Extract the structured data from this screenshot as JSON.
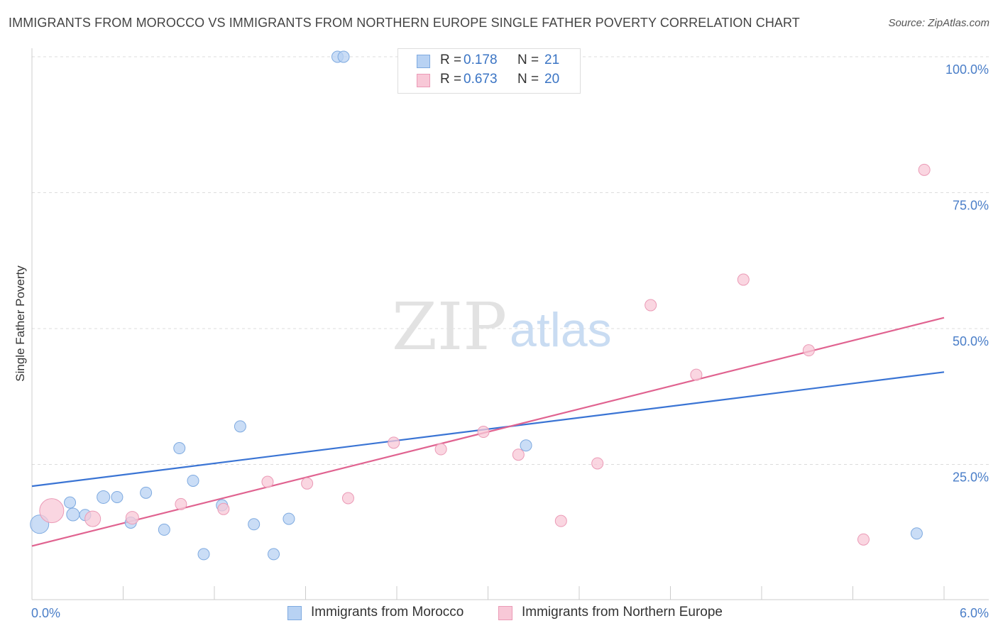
{
  "title": "IMMIGRANTS FROM MOROCCO VS IMMIGRANTS FROM NORTHERN EUROPE SINGLE FATHER POVERTY CORRELATION CHART",
  "source": "Source: ZipAtlas.com",
  "watermark": {
    "zip": "ZIP",
    "atlas": "atlas"
  },
  "chart_data": {
    "type": "scatter",
    "title": "IMMIGRANTS FROM MOROCCO VS IMMIGRANTS FROM NORTHERN EUROPE SINGLE FATHER POVERTY CORRELATION CHART",
    "xlabel": "",
    "ylabel": "Single Father Poverty",
    "xlim": [
      0,
      6
    ],
    "ylim": [
      0,
      100
    ],
    "x_tick_labels": {
      "min": "0.0%",
      "max": "6.0%"
    },
    "y_tick_labels": [
      {
        "value": 25,
        "label": "25.0%"
      },
      {
        "value": 50,
        "label": "50.0%"
      },
      {
        "value": 75,
        "label": "75.0%"
      },
      {
        "value": 100,
        "label": "100.0%"
      }
    ],
    "grid": true,
    "series": [
      {
        "name": "Immigrants from Morocco",
        "color": "#3a74d4",
        "fill": "#b8d2f3",
        "stroke": "#7eaae0",
        "R": "0.178",
        "N": "21",
        "points": [
          {
            "x": 0.05,
            "y": 14.0,
            "size": 13
          },
          {
            "x": 0.27,
            "y": 15.8,
            "size": 9
          },
          {
            "x": 0.25,
            "y": 18.0,
            "size": 8
          },
          {
            "x": 0.35,
            "y": 15.7,
            "size": 8
          },
          {
            "x": 0.47,
            "y": 19.0,
            "size": 9
          },
          {
            "x": 0.56,
            "y": 19.0,
            "size": 8
          },
          {
            "x": 0.65,
            "y": 14.3,
            "size": 8
          },
          {
            "x": 0.75,
            "y": 19.8,
            "size": 8
          },
          {
            "x": 0.87,
            "y": 13.0,
            "size": 8
          },
          {
            "x": 0.97,
            "y": 28.0,
            "size": 8
          },
          {
            "x": 1.06,
            "y": 22.0,
            "size": 8
          },
          {
            "x": 1.13,
            "y": 8.5,
            "size": 8
          },
          {
            "x": 1.25,
            "y": 17.5,
            "size": 8
          },
          {
            "x": 1.37,
            "y": 32.0,
            "size": 8
          },
          {
            "x": 1.46,
            "y": 14.0,
            "size": 8
          },
          {
            "x": 1.59,
            "y": 8.5,
            "size": 8
          },
          {
            "x": 1.69,
            "y": 15.0,
            "size": 8
          },
          {
            "x": 2.01,
            "y": 100.0,
            "size": 8
          },
          {
            "x": 2.05,
            "y": 100.0,
            "size": 8
          },
          {
            "x": 3.25,
            "y": 28.5,
            "size": 8
          },
          {
            "x": 5.82,
            "y": 12.3,
            "size": 8
          }
        ],
        "trend": {
          "x0": 0,
          "y0": 21.0,
          "x1": 6,
          "y1": 42.0
        }
      },
      {
        "name": "Immigrants from Northern Europe",
        "color": "#e06390",
        "fill": "#f8c8d7",
        "stroke": "#eb9ab6",
        "R": "0.673",
        "N": "20",
        "points": [
          {
            "x": 0.13,
            "y": 16.5,
            "size": 17
          },
          {
            "x": 0.4,
            "y": 15.0,
            "size": 11
          },
          {
            "x": 0.66,
            "y": 15.2,
            "size": 9
          },
          {
            "x": 0.98,
            "y": 17.7,
            "size": 8
          },
          {
            "x": 1.26,
            "y": 16.8,
            "size": 8
          },
          {
            "x": 1.55,
            "y": 21.8,
            "size": 8
          },
          {
            "x": 1.81,
            "y": 21.5,
            "size": 8
          },
          {
            "x": 2.08,
            "y": 18.8,
            "size": 8
          },
          {
            "x": 2.38,
            "y": 29.0,
            "size": 8
          },
          {
            "x": 2.69,
            "y": 27.8,
            "size": 8
          },
          {
            "x": 2.97,
            "y": 31.0,
            "size": 8
          },
          {
            "x": 3.2,
            "y": 26.8,
            "size": 8
          },
          {
            "x": 3.48,
            "y": 14.6,
            "size": 8
          },
          {
            "x": 3.72,
            "y": 25.2,
            "size": 8
          },
          {
            "x": 4.07,
            "y": 54.3,
            "size": 8
          },
          {
            "x": 4.37,
            "y": 41.5,
            "size": 8
          },
          {
            "x": 4.68,
            "y": 59.0,
            "size": 8
          },
          {
            "x": 5.11,
            "y": 46.0,
            "size": 8
          },
          {
            "x": 5.47,
            "y": 11.2,
            "size": 8
          },
          {
            "x": 5.87,
            "y": 79.2,
            "size": 8
          }
        ],
        "trend": {
          "x0": 0,
          "y0": 10.0,
          "x1": 6,
          "y1": 52.0
        }
      }
    ],
    "legend_position": "top-center"
  }
}
